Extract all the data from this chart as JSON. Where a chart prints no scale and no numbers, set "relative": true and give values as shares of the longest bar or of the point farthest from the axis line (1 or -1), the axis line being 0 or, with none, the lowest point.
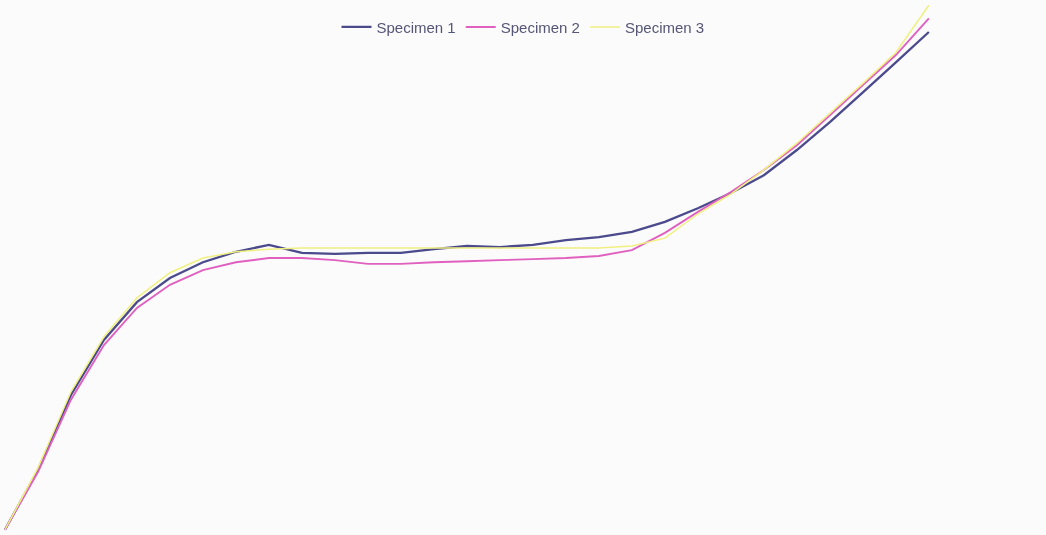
{
  "chart_data": {
    "type": "line",
    "relative": true,
    "legend": "top",
    "marker": "none",
    "line_style": "solid",
    "categories": [
      null,
      null,
      null,
      null,
      null,
      null,
      null,
      null,
      null,
      null,
      null,
      null,
      null,
      null,
      null,
      null,
      null,
      null,
      null,
      null,
      null,
      null,
      null,
      null,
      null,
      null,
      null,
      null,
      null,
      null
    ],
    "series": [
      {
        "name": "Specimen 1",
        "color": "#4a4a8c",
        "values": [
          0,
          0.114,
          0.257,
          0.362,
          0.434,
          0.48,
          0.51,
          0.53,
          0.543,
          0.528,
          0.526,
          0.528,
          0.528,
          0.535,
          0.541,
          0.539,
          0.543,
          0.552,
          0.558,
          0.568,
          0.587,
          0.613,
          0.642,
          0.676,
          0.724,
          0.777,
          0.834,
          0.891,
          0.949,
          null
        ]
      },
      {
        "name": "Specimen 2",
        "color": "#e060c0",
        "values": [
          0,
          0.11,
          0.248,
          0.352,
          0.423,
          0.467,
          0.495,
          0.51,
          0.518,
          0.518,
          0.514,
          0.507,
          0.507,
          0.51,
          0.512,
          0.514,
          0.516,
          0.518,
          0.522,
          0.533,
          0.566,
          0.606,
          0.644,
          0.686,
          0.733,
          0.79,
          0.848,
          0.905,
          0.975,
          null
        ]
      },
      {
        "name": "Specimen 3",
        "color": "#f0f080",
        "values": [
          0,
          0.118,
          0.263,
          0.368,
          0.442,
          0.49,
          0.518,
          0.53,
          0.535,
          0.537,
          0.537,
          0.537,
          0.537,
          0.537,
          0.537,
          0.537,
          0.537,
          0.537,
          0.537,
          0.541,
          0.556,
          0.602,
          0.64,
          0.686,
          0.737,
          0.794,
          0.851,
          0.91,
          1,
          null
        ]
      }
    ]
  }
}
